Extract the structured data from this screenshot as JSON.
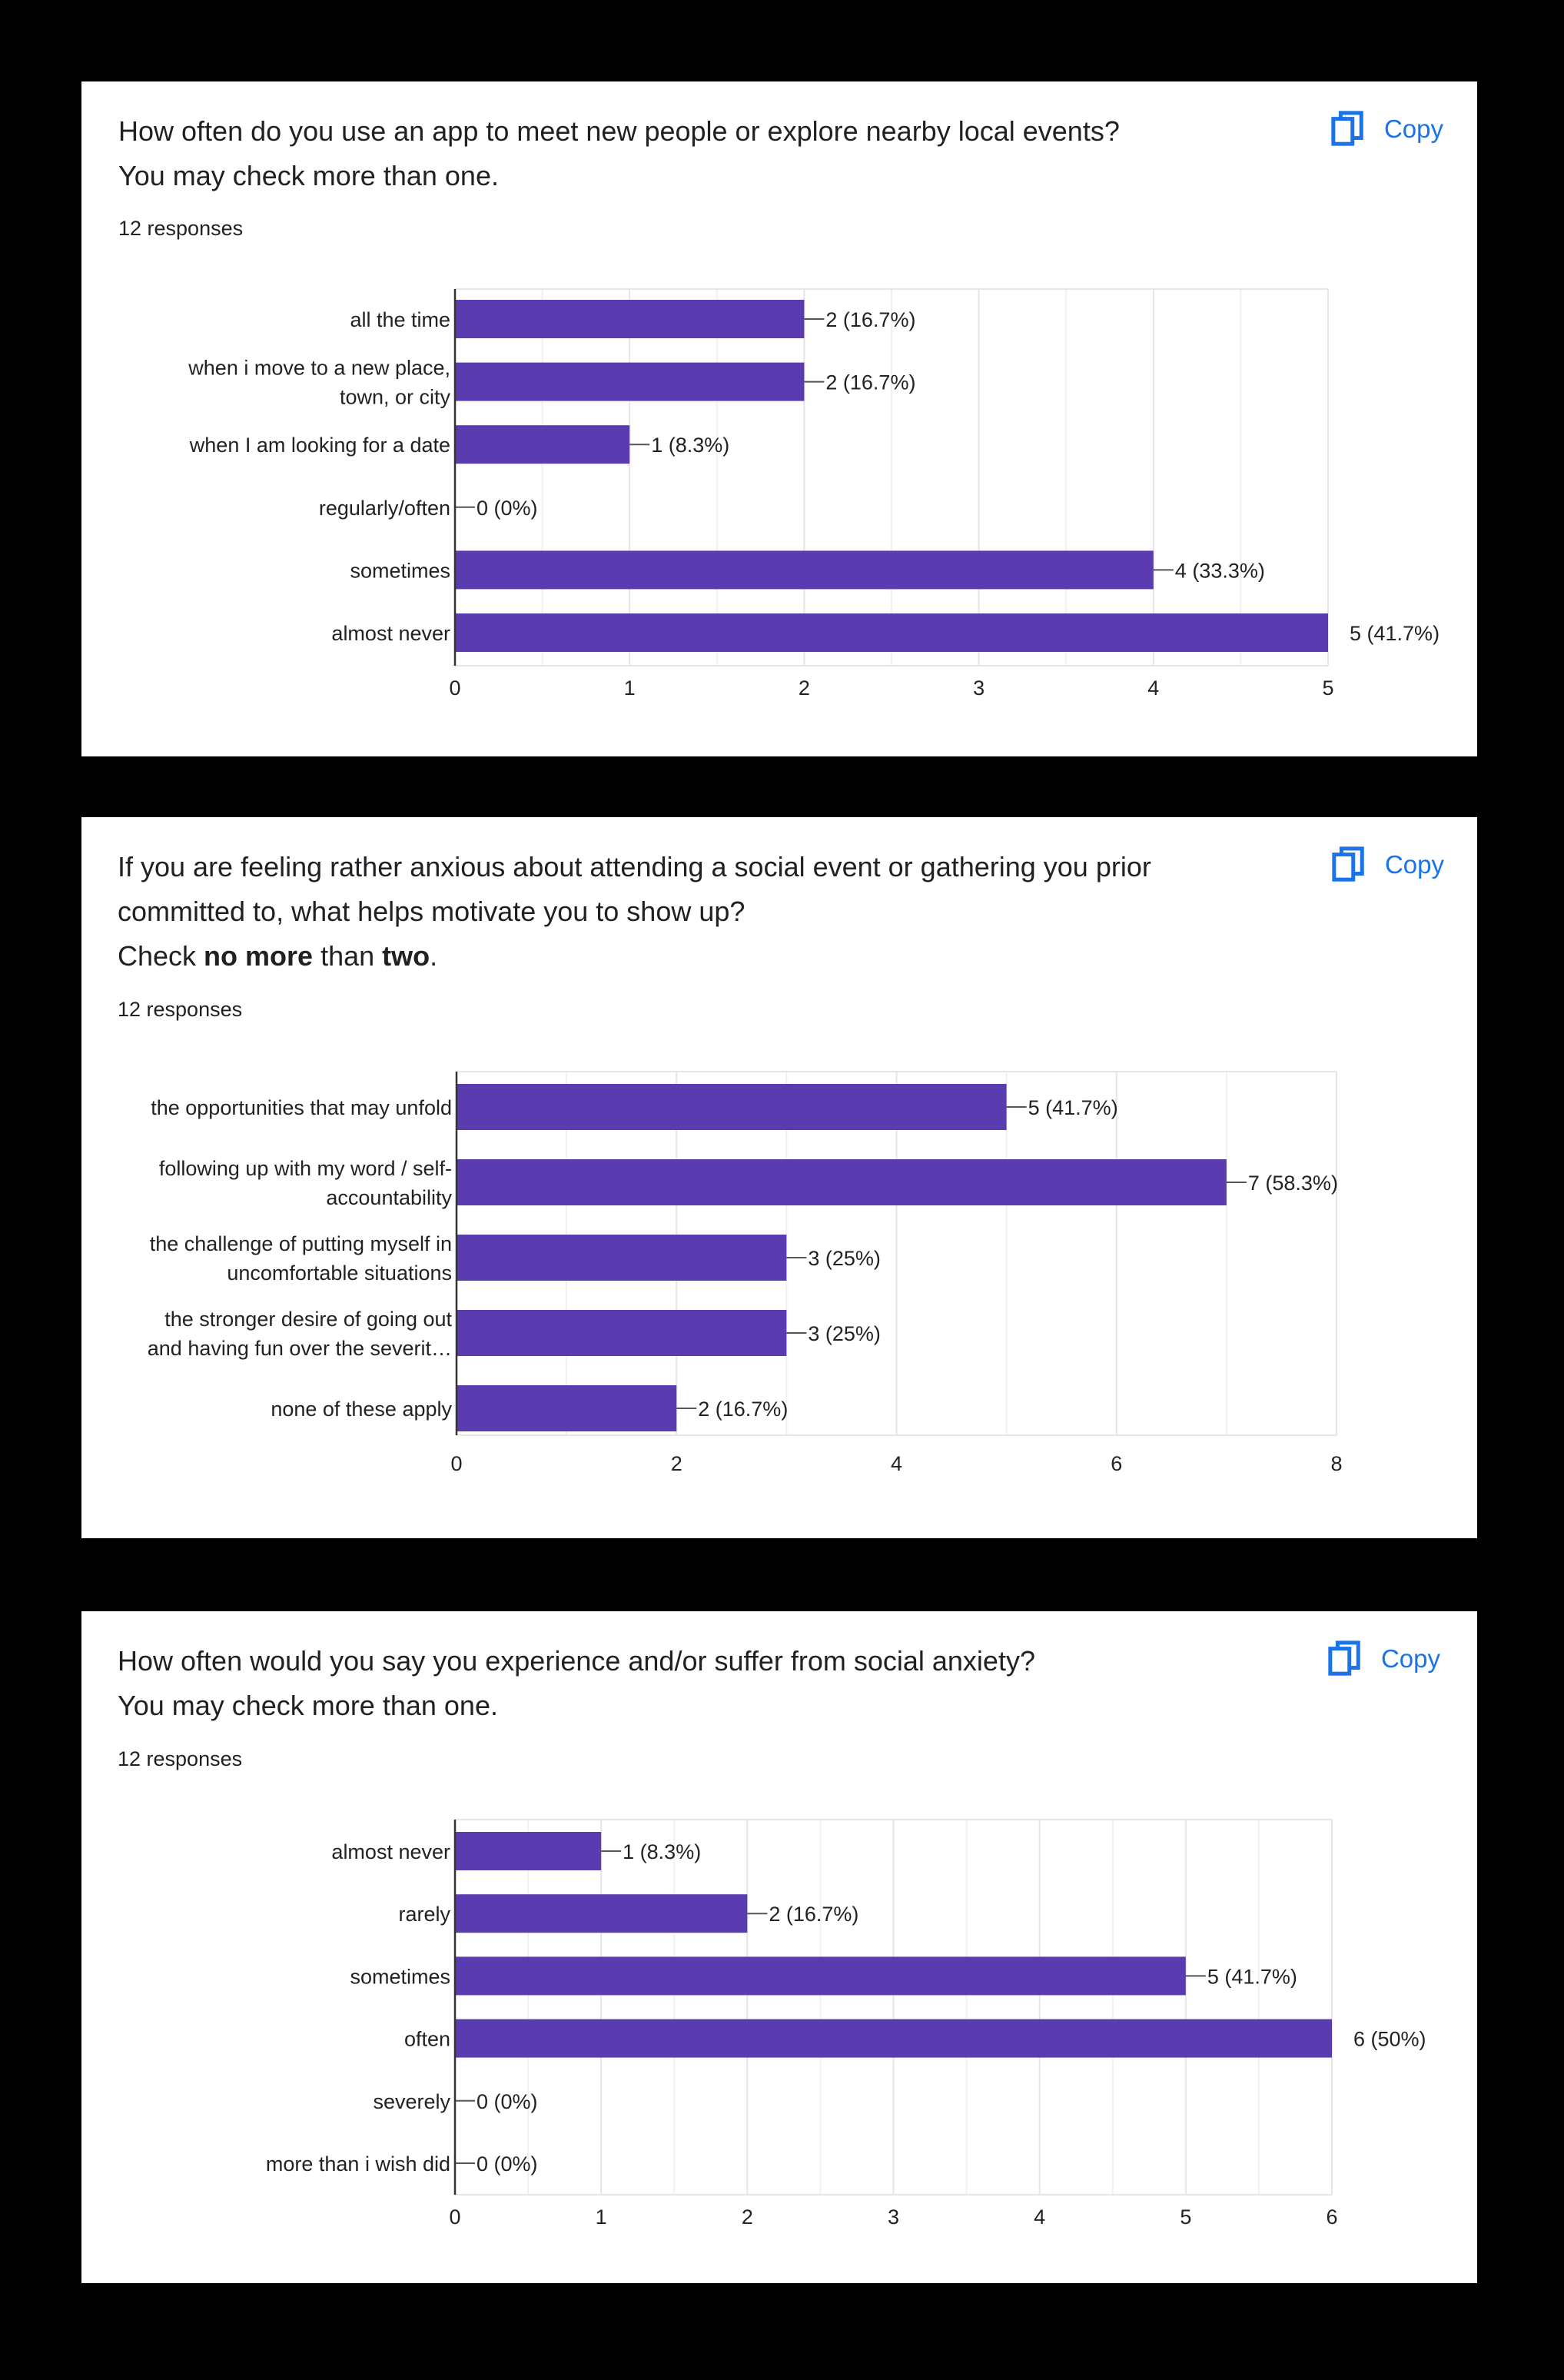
{
  "colors": {
    "bar": "#5b3bb0",
    "copy": "#1a73e8",
    "grid": "#e6e6e6",
    "axis": "#333333"
  },
  "copy_icon": "copy-icon",
  "questions": [
    {
      "title_lines": [
        "How often do you use an app to meet new people or explore nearby local events?",
        "You may check more than one."
      ],
      "responses": "12 responses",
      "copy_label": "Copy"
    },
    {
      "title_lines": [
        "If you are feeling rather anxious about attending a social event or gathering you prior",
        "committed to, what helps motivate you to show up?"
      ],
      "title_line3": {
        "a": "Check ",
        "b": "no more",
        "c": " than ",
        "d": "two",
        "e": "."
      },
      "responses": "12 responses",
      "copy_label": "Copy"
    },
    {
      "title_lines": [
        "How often would you say you experience and/or suffer from social anxiety?",
        "You may check more than one."
      ],
      "responses": "12 responses",
      "copy_label": "Copy"
    }
  ],
  "chart_data": [
    {
      "type": "bar",
      "orientation": "horizontal",
      "categories": [
        [
          "all the time"
        ],
        [
          "when i move to a new place,",
          "town, or city"
        ],
        [
          "when I am looking for a date"
        ],
        [
          "regularly/often"
        ],
        [
          "sometimes"
        ],
        [
          "almost never"
        ]
      ],
      "values": [
        2,
        2,
        1,
        0,
        4,
        5
      ],
      "labels": [
        "2 (16.7%)",
        "2 (16.7%)",
        "1 (8.3%)",
        "0 (0%)",
        "4 (33.3%)",
        "5 (41.7%)"
      ],
      "xticks": [
        0,
        1,
        2,
        3,
        4,
        5
      ],
      "xlim": [
        0,
        5
      ]
    },
    {
      "type": "bar",
      "orientation": "horizontal",
      "categories": [
        [
          "the opportunities that may unfold"
        ],
        [
          "following up with my word / self-",
          "accountability"
        ],
        [
          "the challenge of putting myself in",
          "uncomfortable situations"
        ],
        [
          "the stronger desire of going out",
          "and having fun over the severit…"
        ],
        [
          "none of these apply"
        ]
      ],
      "values": [
        5,
        7,
        3,
        3,
        2
      ],
      "labels": [
        "5 (41.7%)",
        "7 (58.3%)",
        "3 (25%)",
        "3 (25%)",
        "2 (16.7%)"
      ],
      "xticks": [
        0,
        2,
        4,
        6,
        8
      ],
      "xlim": [
        0,
        8
      ]
    },
    {
      "type": "bar",
      "orientation": "horizontal",
      "categories": [
        [
          "almost never"
        ],
        [
          "rarely"
        ],
        [
          "sometimes"
        ],
        [
          "often"
        ],
        [
          "severely"
        ],
        [
          "more than i wish did"
        ]
      ],
      "values": [
        1,
        2,
        5,
        6,
        0,
        0
      ],
      "labels": [
        "1 (8.3%)",
        "2 (16.7%)",
        "5 (41.7%)",
        "6 (50%)",
        "0 (0%)",
        "0 (0%)"
      ],
      "xticks": [
        0,
        1,
        2,
        3,
        4,
        5,
        6
      ],
      "xlim": [
        0,
        6
      ]
    }
  ]
}
